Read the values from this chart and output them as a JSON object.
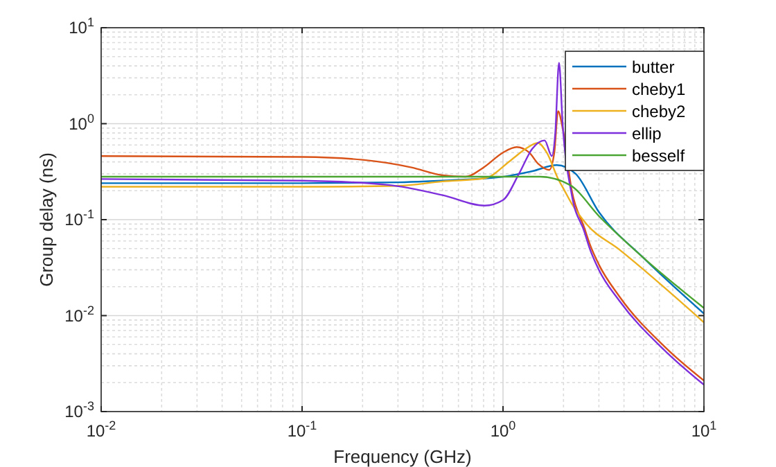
{
  "chart_data": {
    "type": "line",
    "xlabel": "Frequency (GHz)",
    "ylabel": "Group delay (ns)",
    "log": "xy",
    "grid": true,
    "legend": "top right",
    "line_style": "solid",
    "marker": "none",
    "xlim": [
      0.01,
      10
    ],
    "ylim": [
      0.001,
      10
    ],
    "xticks": [
      {
        "value": 0.01,
        "label": "10$^{-2}$"
      },
      {
        "value": 0.1,
        "label": "10$^{-1}$"
      },
      {
        "value": 1,
        "label": "10$^{0}$"
      },
      {
        "value": 10,
        "label": "10$^{1}$"
      }
    ],
    "yticks": [
      {
        "value": 0.001,
        "label": "10$^{-3}$"
      },
      {
        "value": 0.01,
        "label": "10$^{-2}$"
      },
      {
        "value": 0.1,
        "label": "10$^{-1}$"
      },
      {
        "value": 1,
        "label": "10$^{0}$"
      },
      {
        "value": 10,
        "label": "10$^{1}$"
      }
    ],
    "series": [
      {
        "name": "butter",
        "color": "#0072bd",
        "x": [
          0.01,
          0.1,
          0.3,
          0.6,
          1,
          1.4,
          1.85,
          2.3,
          3,
          5,
          10
        ],
        "values": [
          0.24,
          0.24,
          0.245,
          0.26,
          0.28,
          0.32,
          0.37,
          0.3,
          0.12,
          0.04,
          0.0105
        ]
      },
      {
        "name": "cheby1",
        "color": "#d95319",
        "x": [
          0.01,
          0.1,
          0.2,
          0.35,
          0.5,
          0.65,
          0.8,
          1,
          1.17,
          1.35,
          1.5,
          1.7,
          1.8,
          1.88,
          1.98,
          2.2,
          2.54,
          2.7,
          3,
          3.78,
          6.4,
          10
        ],
        "values": [
          0.46,
          0.45,
          0.42,
          0.35,
          0.29,
          0.28,
          0.35,
          0.5,
          0.57,
          0.5,
          0.38,
          0.33,
          0.5,
          1.35,
          0.9,
          0.2,
          0.082,
          0.056,
          0.034,
          0.016,
          0.0047,
          0.0021
        ]
      },
      {
        "name": "cheby2",
        "color": "#edb120",
        "x": [
          0.01,
          0.1,
          0.3,
          0.5,
          0.81,
          1.1,
          1.3,
          1.49,
          1.65,
          1.89,
          2,
          2.2,
          2.6,
          3.78,
          10
        ],
        "values": [
          0.22,
          0.22,
          0.225,
          0.25,
          0.27,
          0.42,
          0.55,
          0.63,
          0.5,
          0.26,
          0.21,
          0.146,
          0.09,
          0.049,
          0.0085
        ]
      },
      {
        "name": "ellip",
        "color": "#7e2fdc",
        "x": [
          0.01,
          0.1,
          0.268,
          0.5,
          0.81,
          1,
          1.2,
          1.4,
          1.61,
          1.75,
          1.82,
          1.9,
          1.98,
          2.2,
          2.54,
          2.7,
          3,
          3.78,
          6.4,
          10
        ],
        "values": [
          0.265,
          0.255,
          0.23,
          0.18,
          0.14,
          0.16,
          0.3,
          0.55,
          0.67,
          0.46,
          0.8,
          4.3,
          1,
          0.18,
          0.075,
          0.05,
          0.03,
          0.0144,
          0.0043,
          0.0019
        ]
      },
      {
        "name": "besself",
        "color": "#4aa532",
        "x": [
          0.01,
          0.1,
          0.5,
          1,
          1.53,
          2.15,
          3.04,
          5,
          10
        ],
        "values": [
          0.28,
          0.28,
          0.28,
          0.28,
          0.28,
          0.23,
          0.106,
          0.04,
          0.012
        ]
      }
    ]
  }
}
